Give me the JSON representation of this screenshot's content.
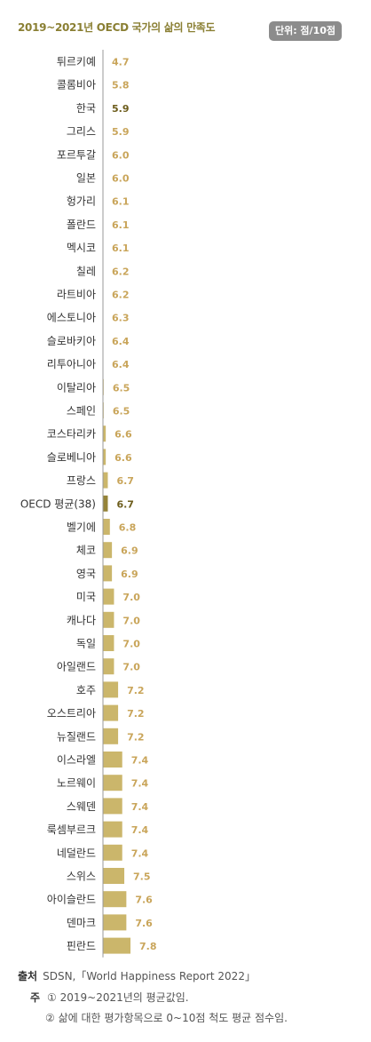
{
  "header": {
    "title": "2019~2021년 OECD 국가의 삶의 만족도",
    "unit": "단위: 점/10점"
  },
  "colors": {
    "bar": "#cbb66b",
    "highlight_bar": "#958338",
    "label_normal": "#c9a55a",
    "label_highlight": "#6d5d1c"
  },
  "chart_data": {
    "type": "bar",
    "orientation": "horizontal",
    "title": "2019~2021년 OECD 국가의 삶의 만족도",
    "unit": "단위: 점/10점",
    "categories": [
      "튀르키예",
      "콜롬비아",
      "한국",
      "그리스",
      "포르투갈",
      "일본",
      "헝가리",
      "폴란드",
      "멕시코",
      "칠레",
      "라트비아",
      "에스토니아",
      "슬로바키아",
      "리투아니아",
      "이탈리아",
      "스페인",
      "코스타리카",
      "슬로베니아",
      "프랑스",
      "OECD 평균(38)",
      "벨기에",
      "체코",
      "영국",
      "미국",
      "캐나다",
      "독일",
      "아일랜드",
      "호주",
      "오스트리아",
      "뉴질랜드",
      "이스라엘",
      "노르웨이",
      "스웨덴",
      "룩셈부르크",
      "네덜란드",
      "스위스",
      "아이슬란드",
      "덴마크",
      "핀란드"
    ],
    "values": [
      4.7,
      5.8,
      5.9,
      5.9,
      6.0,
      6.0,
      6.1,
      6.1,
      6.1,
      6.2,
      6.2,
      6.3,
      6.4,
      6.4,
      6.5,
      6.5,
      6.6,
      6.6,
      6.7,
      6.7,
      6.8,
      6.9,
      6.9,
      7.0,
      7.0,
      7.0,
      7.0,
      7.2,
      7.2,
      7.2,
      7.4,
      7.4,
      7.4,
      7.4,
      7.4,
      7.5,
      7.6,
      7.6,
      7.8
    ],
    "value_labels": [
      "4.7",
      "5.8",
      "5.9",
      "5.9",
      "6.0",
      "6.0",
      "6.1",
      "6.1",
      "6.1",
      "6.2",
      "6.2",
      "6.3",
      "6.4",
      "6.4",
      "6.5",
      "6.5",
      "6.6",
      "6.6",
      "6.7",
      "6.7",
      "6.8",
      "6.9",
      "6.9",
      "7.0",
      "7.0",
      "7.0",
      "7.0",
      "7.2",
      "7.2",
      "7.2",
      "7.4",
      "7.4",
      "7.4",
      "7.4",
      "7.4",
      "7.5",
      "7.6",
      "7.6",
      "7.8"
    ],
    "highlighted": [
      "한국",
      "OECD 평균(38)"
    ],
    "grid": false,
    "legend": "none"
  },
  "footer": {
    "source_label": "출처",
    "source_text": "SDSN,「World Happiness Report 2022」",
    "note_label": "주",
    "note1": "① 2019~2021년의 평균값임.",
    "note2": "② 삶에 대한 평가항목으로 0~10점 척도 평균 점수임."
  }
}
